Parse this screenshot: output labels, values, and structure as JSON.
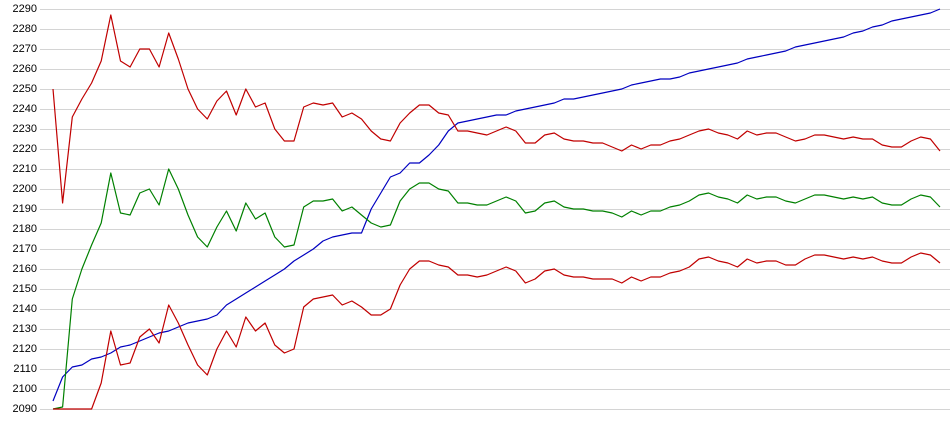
{
  "chart_data": {
    "type": "line",
    "categories": [
      null,
      null,
      null,
      null,
      null,
      null,
      null,
      null,
      null,
      null,
      null,
      null,
      null,
      null,
      null,
      null,
      null,
      null,
      null,
      null,
      null,
      null,
      null,
      null,
      null,
      null,
      null,
      null,
      null,
      null,
      null,
      null,
      null,
      null,
      null,
      null,
      null,
      null,
      null,
      null,
      null,
      null,
      null,
      null,
      null,
      null,
      null,
      null,
      null,
      null,
      null,
      null,
      null,
      null,
      null,
      null,
      null,
      null,
      null,
      null,
      null,
      null,
      null,
      null,
      null,
      null,
      null,
      null,
      null,
      null,
      null,
      null,
      null,
      null,
      null,
      null,
      null,
      null,
      null,
      null,
      null,
      null,
      null,
      null,
      null,
      null,
      null,
      null,
      null,
      null,
      null,
      null,
      null
    ],
    "series": [
      {
        "color": "#0000c0",
        "values": [
          2094,
          2106,
          2111,
          2112,
          2115,
          2116,
          2118,
          2121,
          2122,
          2124,
          2126,
          2128,
          2129,
          2131,
          2133,
          2134,
          2135,
          2137,
          2142,
          2145,
          2148,
          2151,
          2154,
          2157,
          2160,
          2164,
          2167,
          2170,
          2174,
          2176,
          2177,
          2178,
          2178,
          2190,
          2198,
          2206,
          2208,
          2213,
          2213,
          2217,
          2222,
          2229,
          2233,
          2234,
          2235,
          2236,
          2237,
          2237,
          2239,
          2240,
          2241,
          2242,
          2243,
          2245,
          2245,
          2246,
          2247,
          2248,
          2249,
          2250,
          2252,
          2253,
          2254,
          2255,
          2255,
          2256,
          2258,
          2259,
          2260,
          2261,
          2262,
          2263,
          2265,
          2266,
          2267,
          2268,
          2269,
          2271,
          2272,
          2273,
          2274,
          2275,
          2276,
          2278,
          2279,
          2281,
          2282,
          2284,
          2285,
          2286,
          2287,
          2288,
          2290
        ]
      },
      {
        "color": "#c00000",
        "values": [
          2250,
          2193,
          2236,
          2245,
          2253,
          2264,
          2287,
          2264,
          2261,
          2270,
          2270,
          2261,
          2278,
          2265,
          2250,
          2240,
          2235,
          2244,
          2249,
          2237,
          2250,
          2241,
          2243,
          2230,
          2224,
          2224,
          2241,
          2243,
          2242,
          2243,
          2236,
          2238,
          2235,
          2229,
          2225,
          2224,
          2233,
          2238,
          2242,
          2242,
          2238,
          2237,
          2229,
          2229,
          2228,
          2227,
          2229,
          2231,
          2229,
          2223,
          2223,
          2227,
          2228,
          2225,
          2224,
          2224,
          2223,
          2223,
          2221,
          2219,
          2222,
          2220,
          2222,
          2222,
          2224,
          2225,
          2227,
          2229,
          2230,
          2228,
          2227,
          2225,
          2229,
          2227,
          2228,
          2228,
          2226,
          2224,
          2225,
          2227,
          2227,
          2226,
          2225,
          2226,
          2225,
          2225,
          2222,
          2221,
          2221,
          2224,
          2226,
          2225,
          2219
        ]
      },
      {
        "color": "#008000",
        "values": [
          2090,
          2091,
          2145,
          2160,
          2172,
          2183,
          2208,
          2188,
          2187,
          2198,
          2200,
          2192,
          2210,
          2200,
          2187,
          2176,
          2171,
          2181,
          2189,
          2179,
          2193,
          2185,
          2188,
          2176,
          2171,
          2172,
          2191,
          2194,
          2194,
          2195,
          2189,
          2191,
          2187,
          2183,
          2181,
          2182,
          2194,
          2200,
          2203,
          2203,
          2200,
          2199,
          2193,
          2193,
          2192,
          2192,
          2194,
          2196,
          2194,
          2188,
          2189,
          2193,
          2194,
          2191,
          2190,
          2190,
          2189,
          2189,
          2188,
          2186,
          2189,
          2187,
          2189,
          2189,
          2191,
          2192,
          2194,
          2197,
          2198,
          2196,
          2195,
          2193,
          2197,
          2195,
          2196,
          2196,
          2194,
          2193,
          2195,
          2197,
          2197,
          2196,
          2195,
          2196,
          2195,
          2196,
          2193,
          2192,
          2192,
          2195,
          2197,
          2196,
          2191
        ]
      },
      {
        "color": "#c00000",
        "values": [
          2090,
          2090,
          2090,
          2090,
          2090,
          2103,
          2129,
          2112,
          2113,
          2126,
          2130,
          2123,
          2142,
          2133,
          2122,
          2112,
          2107,
          2120,
          2129,
          2121,
          2136,
          2129,
          2133,
          2122,
          2118,
          2120,
          2141,
          2145,
          2146,
          2147,
          2142,
          2144,
          2141,
          2137,
          2137,
          2140,
          2152,
          2160,
          2164,
          2164,
          2162,
          2161,
          2157,
          2157,
          2156,
          2157,
          2159,
          2161,
          2159,
          2153,
          2155,
          2159,
          2160,
          2157,
          2156,
          2156,
          2155,
          2155,
          2155,
          2153,
          2156,
          2154,
          2156,
          2156,
          2158,
          2159,
          2161,
          2165,
          2166,
          2164,
          2163,
          2161,
          2165,
          2163,
          2164,
          2164,
          2162,
          2162,
          2165,
          2167,
          2167,
          2166,
          2165,
          2166,
          2165,
          2166,
          2164,
          2163,
          2163,
          2166,
          2168,
          2167,
          2163
        ]
      }
    ],
    "ylim": [
      2090,
      2290
    ],
    "yticks": [
      2090,
      2100,
      2110,
      2120,
      2130,
      2140,
      2150,
      2160,
      2170,
      2180,
      2190,
      2200,
      2210,
      2220,
      2230,
      2240,
      2250,
      2260,
      2270,
      2280,
      2290
    ],
    "grid": true
  }
}
